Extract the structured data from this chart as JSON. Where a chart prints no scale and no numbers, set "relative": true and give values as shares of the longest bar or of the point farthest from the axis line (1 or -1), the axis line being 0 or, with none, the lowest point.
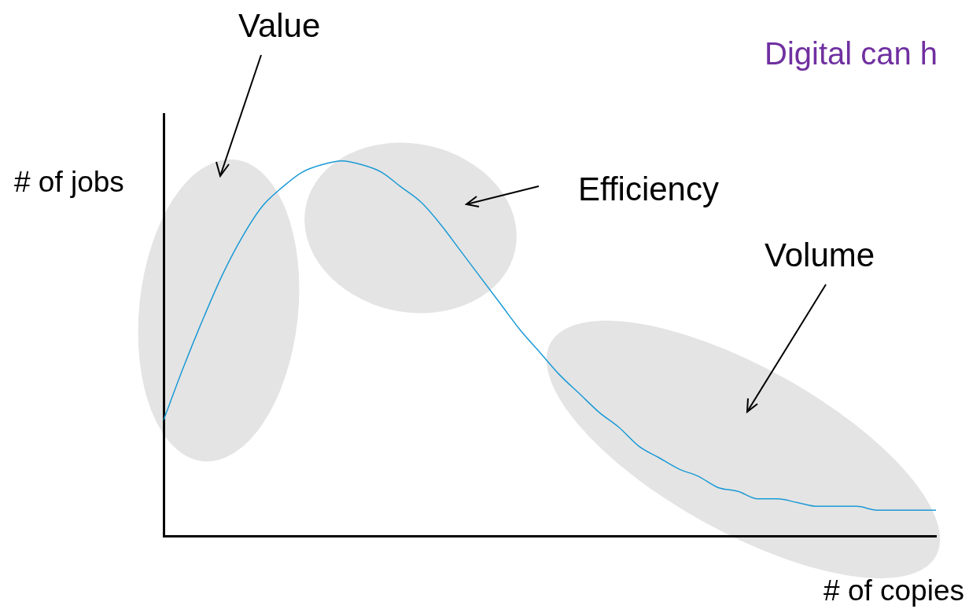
{
  "chart_data": {
    "type": "line",
    "relative": true,
    "title": "Digital can h",
    "xlabel": "# of copies",
    "ylabel": "# of jobs",
    "annotations": [
      "Value",
      "Efficiency",
      "Volume"
    ],
    "categories": [
      null,
      null,
      null,
      null,
      null,
      null,
      null,
      null,
      null,
      null,
      null,
      null,
      null,
      null,
      null,
      null,
      null,
      null,
      null,
      null,
      null,
      null,
      null,
      null,
      null,
      null,
      null,
      null,
      null,
      null,
      null,
      null,
      null,
      null,
      null,
      null,
      null,
      null,
      null,
      null
    ],
    "series": [
      {
        "color": "#1a9ad6",
        "values": [
          0.31,
          0.45,
          0.58,
          0.7,
          0.8,
          0.88,
          0.93,
          0.97,
          0.99,
          1,
          0.99,
          0.97,
          0.93,
          0.89,
          0.83,
          0.76,
          0.69,
          0.62,
          0.55,
          0.49,
          0.43,
          0.38,
          0.33,
          0.29,
          0.24,
          0.21,
          0.18,
          0.16,
          0.13,
          0.12,
          0.1,
          0.1,
          0.09,
          0.08,
          0.08,
          0.08,
          0.07,
          0.07,
          0.07,
          0.07
        ]
      }
    ],
    "grid": false,
    "legend": false,
    "marker": "none",
    "line_style": "solid"
  }
}
